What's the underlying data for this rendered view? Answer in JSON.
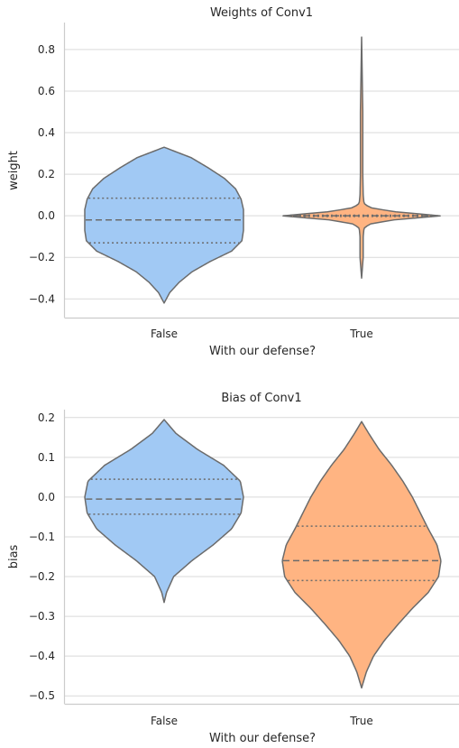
{
  "chart_data": [
    {
      "type": "violin",
      "title": "Weights of Conv1",
      "xlabel": "With our defense?",
      "ylabel": "weight",
      "categories": [
        "False",
        "True"
      ],
      "ylim": [
        -0.49,
        0.93
      ],
      "yticks": [
        -0.4,
        -0.2,
        0.0,
        0.2,
        0.4,
        0.6,
        0.8
      ],
      "ytick_labels": [
        "−0.4",
        "−0.2",
        "0.0",
        "0.2",
        "0.4",
        "0.6",
        "0.8"
      ],
      "grid": true,
      "inner": "quartile",
      "colors": [
        "#a1c9f4",
        "#ffb482"
      ],
      "violins": [
        {
          "category": "False",
          "min": -0.42,
          "max": 0.33,
          "q1": -0.13,
          "median": -0.02,
          "q3": 0.085,
          "density": [
            [
              -0.42,
              0.0
            ],
            [
              -0.37,
              0.07
            ],
            [
              -0.32,
              0.19
            ],
            [
              -0.27,
              0.35
            ],
            [
              -0.22,
              0.58
            ],
            [
              -0.17,
              0.85
            ],
            [
              -0.12,
              0.98
            ],
            [
              -0.07,
              1.0
            ],
            [
              -0.02,
              1.0
            ],
            [
              0.03,
              1.0
            ],
            [
              0.08,
              0.97
            ],
            [
              0.13,
              0.9
            ],
            [
              0.18,
              0.76
            ],
            [
              0.23,
              0.56
            ],
            [
              0.28,
              0.34
            ],
            [
              0.33,
              0.0
            ]
          ]
        },
        {
          "category": "True",
          "min": -0.3,
          "max": 0.86,
          "q1": -0.003,
          "median": 0.0,
          "q3": 0.003,
          "density": [
            [
              -0.3,
              0.0
            ],
            [
              -0.2,
              0.02
            ],
            [
              -0.1,
              0.02
            ],
            [
              -0.06,
              0.03
            ],
            [
              -0.04,
              0.1
            ],
            [
              -0.02,
              0.4
            ],
            [
              0.0,
              1.0
            ],
            [
              0.02,
              0.4
            ],
            [
              0.04,
              0.1
            ],
            [
              0.06,
              0.03
            ],
            [
              0.1,
              0.02
            ],
            [
              0.2,
              0.015
            ],
            [
              0.5,
              0.015
            ],
            [
              0.86,
              0.0
            ]
          ]
        }
      ]
    },
    {
      "type": "violin",
      "title": "Bias of Conv1",
      "xlabel": "With our defense?",
      "ylabel": "bias",
      "categories": [
        "False",
        "True"
      ],
      "ylim": [
        -0.52,
        0.22
      ],
      "yticks": [
        -0.5,
        -0.4,
        -0.3,
        -0.2,
        -0.1,
        0.0,
        0.1,
        0.2
      ],
      "ytick_labels": [
        "−0.5",
        "−0.4",
        "−0.3",
        "−0.2",
        "−0.1",
        "0.0",
        "0.1",
        "0.2"
      ],
      "grid": true,
      "inner": "quartile",
      "colors": [
        "#a1c9f4",
        "#ffb482"
      ],
      "violins": [
        {
          "category": "False",
          "min": -0.265,
          "max": 0.195,
          "q1": -0.043,
          "median": -0.005,
          "q3": 0.045,
          "density": [
            [
              -0.265,
              0.0
            ],
            [
              -0.24,
              0.03
            ],
            [
              -0.2,
              0.12
            ],
            [
              -0.16,
              0.35
            ],
            [
              -0.12,
              0.62
            ],
            [
              -0.08,
              0.85
            ],
            [
              -0.04,
              0.97
            ],
            [
              0.0,
              1.0
            ],
            [
              0.04,
              0.96
            ],
            [
              0.08,
              0.75
            ],
            [
              0.12,
              0.42
            ],
            [
              0.16,
              0.15
            ],
            [
              0.195,
              0.0
            ]
          ]
        },
        {
          "category": "True",
          "min": -0.48,
          "max": 0.19,
          "q1": -0.21,
          "median": -0.16,
          "q3": -0.073,
          "density": [
            [
              -0.48,
              0.0
            ],
            [
              -0.44,
              0.06
            ],
            [
              -0.4,
              0.15
            ],
            [
              -0.36,
              0.29
            ],
            [
              -0.32,
              0.46
            ],
            [
              -0.28,
              0.64
            ],
            [
              -0.24,
              0.84
            ],
            [
              -0.2,
              0.97
            ],
            [
              -0.16,
              1.0
            ],
            [
              -0.12,
              0.95
            ],
            [
              -0.08,
              0.84
            ],
            [
              -0.04,
              0.74
            ],
            [
              0.0,
              0.64
            ],
            [
              0.04,
              0.52
            ],
            [
              0.08,
              0.38
            ],
            [
              0.12,
              0.22
            ],
            [
              0.16,
              0.09
            ],
            [
              0.19,
              0.0
            ]
          ]
        }
      ]
    }
  ]
}
